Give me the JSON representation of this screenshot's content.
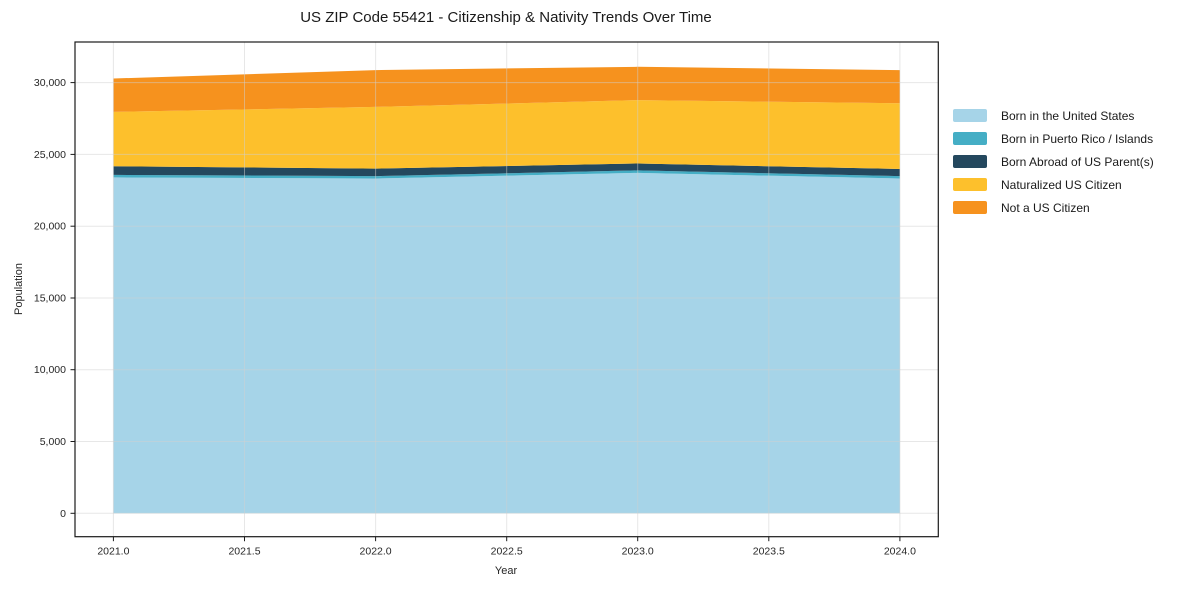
{
  "page": {
    "title": "US ZIP Code 55421 - Citizenship & Nativity Trends Over Time"
  },
  "chart_data": {
    "type": "area",
    "stacked": true,
    "title": "US ZIP Code 55421 - Citizenship & Nativity Trends Over Time",
    "xlabel": "Year",
    "ylabel": "Population",
    "x": [
      2021,
      2022,
      2023,
      2024
    ],
    "series": [
      {
        "name": "Born in the United States",
        "color": "#a6d4e8",
        "values": [
          23400,
          23320,
          23710,
          23320
        ]
      },
      {
        "name": "Born in Puerto Rico / Islands",
        "color": "#45aec5",
        "values": [
          170,
          170,
          175,
          170
        ]
      },
      {
        "name": "Born Abroad of US Parent(s)",
        "color": "#24485e",
        "values": [
          610,
          520,
          480,
          490
        ]
      },
      {
        "name": "Naturalized US Citizen",
        "color": "#fdc02c",
        "values": [
          3780,
          4300,
          4420,
          4590
        ]
      },
      {
        "name": "Not a US Citizen",
        "color": "#f6921e",
        "values": [
          2330,
          2560,
          2315,
          2300
        ]
      }
    ],
    "totals": [
      30290,
      30870,
      31100,
      30870
    ],
    "xlim": [
      2020.8535,
      2024.1465
    ],
    "ylim": [
      -1630,
      32830
    ],
    "xticks": {
      "values": [
        2021.0,
        2021.5,
        2022.0,
        2022.5,
        2023.0,
        2023.5,
        2024.0
      ],
      "labels": [
        "2021.0",
        "2021.5",
        "2022.0",
        "2022.5",
        "2023.0",
        "2023.5",
        "2024.0"
      ]
    },
    "yticks": {
      "values": [
        0,
        5000,
        10000,
        15000,
        20000,
        25000,
        30000
      ],
      "labels": [
        "0",
        "5,000",
        "10,000",
        "15,000",
        "20,000",
        "25,000",
        "30,000"
      ]
    },
    "grid": true,
    "legend_position": "right-outside",
    "colors": {
      "spine": "#1a1a1a",
      "grid": "#d0d0d0",
      "tick_label": "#262626"
    }
  }
}
